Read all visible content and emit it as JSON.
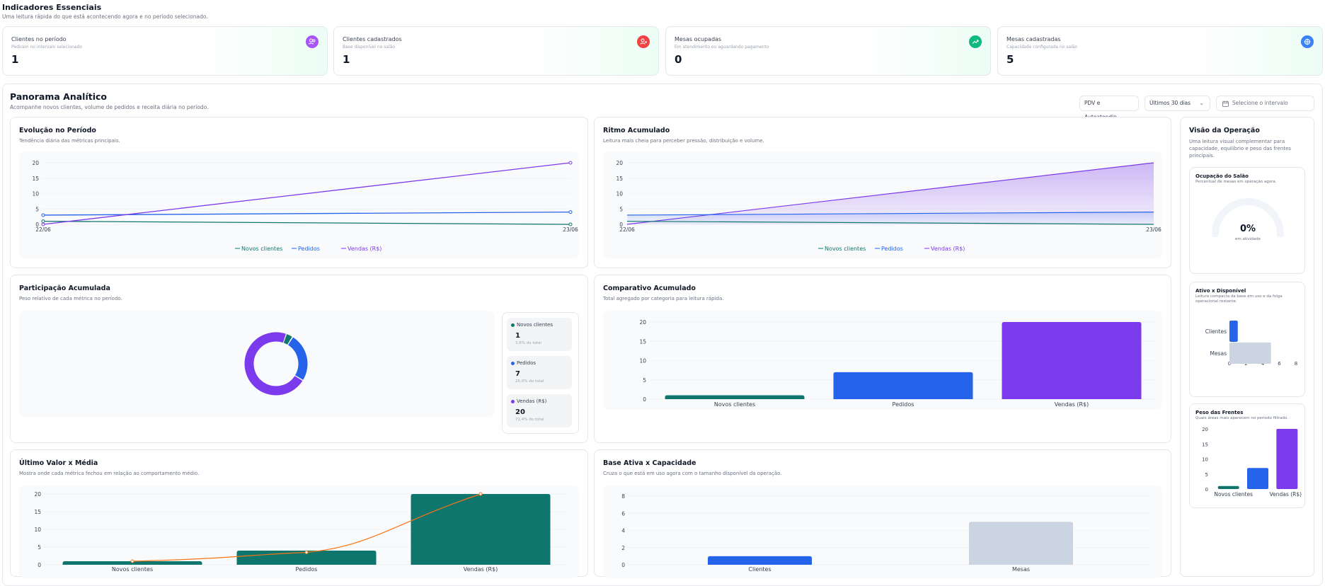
{
  "header": {
    "title": "Indicadores Essenciais",
    "subtitle": "Uma leitura rápida do que está acontecendo agora e no período selecionado."
  },
  "kpis": [
    {
      "label": "Clientes no período",
      "desc": "Pediram no intervalo selecionado",
      "value": "1",
      "icon": "users-icon",
      "color": "#a855f7"
    },
    {
      "label": "Clientes cadastrados",
      "desc": "Base disponível no salão",
      "value": "1",
      "icon": "user-add-icon",
      "color": "#ef4444"
    },
    {
      "label": "Mesas ocupadas",
      "desc": "Em atendimento ou aguardando pagamento",
      "value": "0",
      "icon": "trend-up-icon",
      "color": "#10b981"
    },
    {
      "label": "Mesas cadastradas",
      "desc": "Capacidade configurada no salão",
      "value": "5",
      "icon": "grid-icon",
      "color": "#3b82f6"
    }
  ],
  "panorama": {
    "title": "Panorama Analítico",
    "subtitle": "Acompanhe novos clientes, volume de pedidos e receita diária no período.",
    "filters": {
      "source": "PDV e Autoatendin...",
      "range": "Últimos 30 dias",
      "interval_placeholder": "Selecione o intervalo"
    }
  },
  "legend": {
    "novos": "Novos clientes",
    "pedidos": "Pedidos",
    "vendas": "Vendas (R$)"
  },
  "colors": {
    "novos": "#0f766e",
    "pedidos": "#2563eb",
    "vendas": "#7c3aed",
    "orange": "#f97316",
    "gray": "#cbd5e1"
  },
  "panels": {
    "evolucao": {
      "title": "Evolução no Período",
      "subtitle": "Tendência diária das métricas principais."
    },
    "ritmo": {
      "title": "Ritmo Acumulado",
      "subtitle": "Leitura mais cheia para perceber pressão, distribuição e volume."
    },
    "participacao": {
      "title": "Participação Acumulada",
      "subtitle": "Peso relativo de cada métrica no período."
    },
    "comparativo": {
      "title": "Comparativo Acumulado",
      "subtitle": "Total agregado por categoria para leitura rápida."
    },
    "ultimo": {
      "title": "Último Valor x Média",
      "subtitle": "Mostra onde cada métrica fechou em relação ao comportamento médio."
    },
    "base": {
      "title": "Base Ativa x Capacidade",
      "subtitle": "Cruza o que está em uso agora com o tamanho disponível da operação."
    }
  },
  "participacao_legend": [
    {
      "name": "Novos clientes",
      "value": "1",
      "pct": "3,6% do total"
    },
    {
      "name": "Pedidos",
      "value": "7",
      "pct": "25,0% do total"
    },
    {
      "name": "Vendas (R$)",
      "value": "20",
      "pct": "71,4% do total"
    }
  ],
  "side": {
    "title": "Visão da Operação",
    "subtitle": "Uma leitura visual complementar para capacidade, equilíbrio e peso das frentes principais.",
    "ocupacao": {
      "title": "Ocupação do Salão",
      "subtitle": "Percentual de mesas em operação agora.",
      "value": "0%",
      "caption": "em atividade"
    },
    "ativo": {
      "title": "Ativo x Disponível",
      "subtitle": "Leitura compacta da base em uso e da folga operacional restante."
    },
    "peso": {
      "title": "Peso das Frentes",
      "subtitle": "Quais áreas mais aparecem no período filtrado."
    }
  },
  "chart_data": [
    {
      "type": "line",
      "title": "Evolução no Período",
      "x": [
        "22/06",
        "23/06"
      ],
      "series": [
        {
          "name": "Novos clientes",
          "values": [
            1,
            0
          ]
        },
        {
          "name": "Pedidos",
          "values": [
            3,
            4
          ]
        },
        {
          "name": "Vendas (R$)",
          "values": [
            0,
            20
          ]
        }
      ],
      "ylim": [
        0,
        20
      ],
      "yticks": [
        0,
        5,
        10,
        15,
        20
      ]
    },
    {
      "type": "area",
      "title": "Ritmo Acumulado",
      "x": [
        "22/06",
        "23/06"
      ],
      "series": [
        {
          "name": "Novos clientes",
          "values": [
            1,
            0
          ]
        },
        {
          "name": "Pedidos",
          "values": [
            3,
            4
          ]
        },
        {
          "name": "Vendas (R$)",
          "values": [
            0,
            20
          ]
        }
      ],
      "ylim": [
        0,
        20
      ],
      "yticks": [
        0,
        5,
        10,
        15,
        20
      ]
    },
    {
      "type": "pie",
      "title": "Participação Acumulada",
      "categories": [
        "Novos clientes",
        "Pedidos",
        "Vendas (R$)"
      ],
      "values": [
        1,
        7,
        20
      ]
    },
    {
      "type": "bar",
      "title": "Comparativo Acumulado",
      "categories": [
        "Novos clientes",
        "Pedidos",
        "Vendas (R$)"
      ],
      "values": [
        1,
        7,
        20
      ],
      "ylim": [
        0,
        20
      ],
      "yticks": [
        0,
        5,
        10,
        15,
        20
      ]
    },
    {
      "type": "bar",
      "title": "Último Valor x Média",
      "categories": [
        "Novos clientes",
        "Pedidos",
        "Vendas (R$)"
      ],
      "values": [
        1,
        4,
        20
      ],
      "line_values": [
        1,
        3.5,
        20
      ],
      "ylim": [
        0,
        20
      ],
      "yticks": [
        0,
        5,
        10,
        15,
        20
      ]
    },
    {
      "type": "bar",
      "title": "Base Ativa x Capacidade",
      "categories": [
        "Clientes",
        "Mesas"
      ],
      "values": [
        1,
        5
      ],
      "ylim": [
        0,
        8
      ],
      "yticks": [
        0,
        2,
        4,
        6,
        8
      ]
    },
    {
      "type": "pie",
      "title": "Ocupação do Salão",
      "values": [
        0
      ]
    },
    {
      "type": "bar",
      "orientation": "horizontal",
      "title": "Ativo x Disponível",
      "categories": [
        "Clientes",
        "Mesas"
      ],
      "values": [
        1,
        5
      ],
      "xlim": [
        0,
        8
      ],
      "xticks": [
        0,
        2,
        4,
        6,
        8
      ]
    },
    {
      "type": "bar",
      "title": "Peso das Frentes",
      "categories": [
        "Novos clientes",
        "Pedidos",
        "Vendas (R$)"
      ],
      "xtick_labels": [
        "Novos clientes",
        "Vendas (R$)"
      ],
      "values": [
        1,
        7,
        20
      ],
      "ylim": [
        0,
        20
      ],
      "yticks": [
        0,
        5,
        10,
        15,
        20
      ]
    }
  ]
}
